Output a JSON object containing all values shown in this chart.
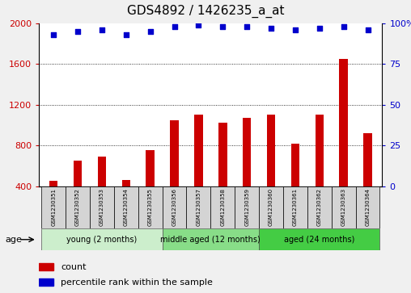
{
  "title": "GDS4892 / 1426235_a_at",
  "samples": [
    "GSM1230351",
    "GSM1230352",
    "GSM1230353",
    "GSM1230354",
    "GSM1230355",
    "GSM1230356",
    "GSM1230357",
    "GSM1230358",
    "GSM1230359",
    "GSM1230360",
    "GSM1230361",
    "GSM1230362",
    "GSM1230363",
    "GSM1230364"
  ],
  "counts": [
    450,
    650,
    690,
    460,
    750,
    1050,
    1100,
    1020,
    1070,
    1100,
    820,
    1100,
    1650,
    920
  ],
  "percentile_ranks": [
    93,
    95,
    96,
    93,
    95,
    98,
    99,
    98,
    98,
    97,
    96,
    97,
    98,
    96
  ],
  "bar_color": "#cc0000",
  "dot_color": "#0000cc",
  "ylim_left": [
    400,
    2000
  ],
  "ylim_right": [
    0,
    100
  ],
  "yticks_left": [
    400,
    800,
    1200,
    1600,
    2000
  ],
  "yticks_right": [
    0,
    25,
    50,
    75,
    100
  ],
  "grid_lines": [
    800,
    1200,
    1600
  ],
  "groups": [
    {
      "label": "young (2 months)",
      "start": 0,
      "end": 5,
      "color": "#cceecc"
    },
    {
      "label": "middle aged (12 months)",
      "start": 5,
      "end": 9,
      "color": "#88dd88"
    },
    {
      "label": "aged (24 months)",
      "start": 9,
      "end": 14,
      "color": "#44cc44"
    }
  ],
  "age_label": "age",
  "legend_count_label": "count",
  "legend_percentile_label": "percentile rank within the sample",
  "bg_color": "#f0f0f0",
  "plot_bg": "#ffffff",
  "sample_box_color": "#d4d4d4",
  "title_fontsize": 11,
  "tick_fontsize": 8,
  "sample_fontsize": 5,
  "group_fontsize": 7,
  "legend_fontsize": 8
}
